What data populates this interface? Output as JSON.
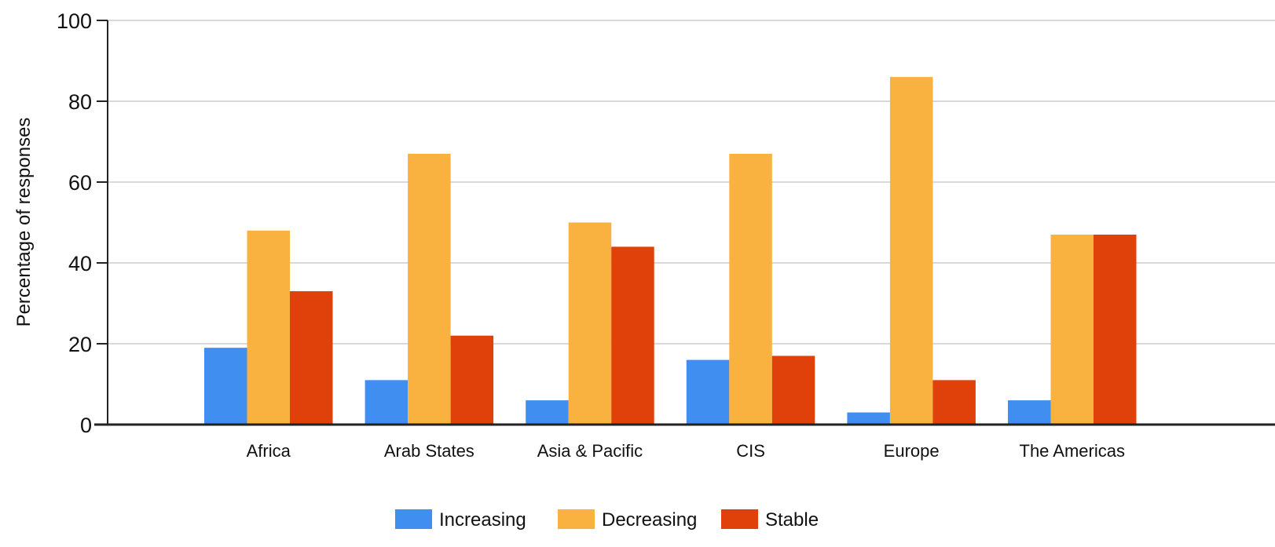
{
  "chart_data": {
    "type": "bar",
    "title": "",
    "xlabel": "",
    "ylabel": "Percentage of responses",
    "ylim": [
      0,
      100
    ],
    "yticks": [
      0,
      20,
      40,
      60,
      80,
      100
    ],
    "grid": true,
    "legend_position": "bottom",
    "categories": [
      "Africa",
      "Arab States",
      "Asia & Pacific",
      "CIS",
      "Europe",
      "The Americas"
    ],
    "series": [
      {
        "name": "Increasing",
        "color": "#3f8ef0",
        "values": [
          19,
          11,
          6,
          16,
          3,
          6
        ]
      },
      {
        "name": "Decreasing",
        "color": "#f9b13f",
        "values": [
          48,
          67,
          50,
          67,
          86,
          47
        ]
      },
      {
        "name": "Stable",
        "color": "#e0410b",
        "values": [
          33,
          22,
          44,
          17,
          11,
          47
        ]
      }
    ]
  }
}
